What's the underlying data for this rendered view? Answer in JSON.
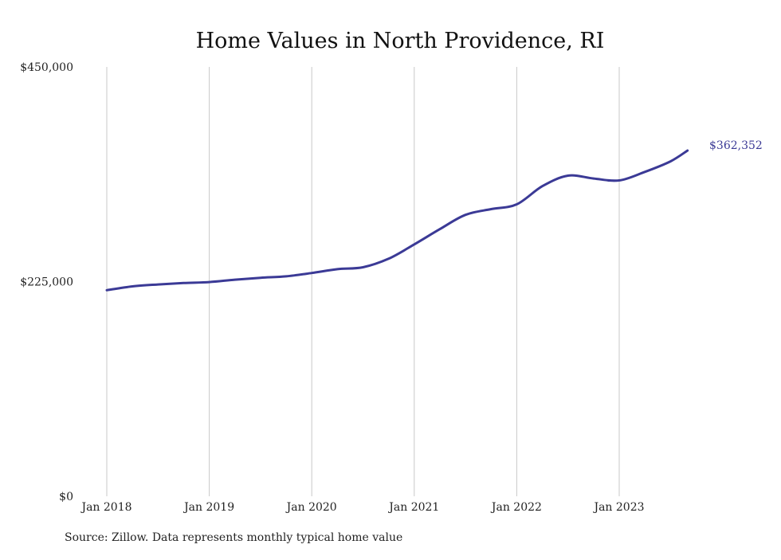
{
  "chart_data": {
    "type": "line",
    "title": "Home Values in North Providence, RI",
    "xlabel": "",
    "ylabel": "",
    "x_ticks": [
      "Jan 2018",
      "Jan 2019",
      "Jan 2020",
      "Jan 2021",
      "Jan 2022",
      "Jan 2023"
    ],
    "y_ticks": [
      "$450,000",
      "$225,000",
      "$0"
    ],
    "y_tick_values": [
      450000,
      225000,
      0
    ],
    "ylim": [
      0,
      450000
    ],
    "xlim": [
      "2018-01",
      "2023-09"
    ],
    "grid": "vertical",
    "end_label": "$362,352",
    "series": [
      {
        "color": "#3b3a96",
        "points": [
          {
            "x": "2018-01",
            "y": 216000
          },
          {
            "x": "2018-04",
            "y": 220000
          },
          {
            "x": "2018-07",
            "y": 222000
          },
          {
            "x": "2018-10",
            "y": 223500
          },
          {
            "x": "2019-01",
            "y": 224500
          },
          {
            "x": "2019-04",
            "y": 227000
          },
          {
            "x": "2019-07",
            "y": 229000
          },
          {
            "x": "2019-10",
            "y": 230500
          },
          {
            "x": "2020-01",
            "y": 234000
          },
          {
            "x": "2020-04",
            "y": 238000
          },
          {
            "x": "2020-07",
            "y": 240000
          },
          {
            "x": "2020-10",
            "y": 249000
          },
          {
            "x": "2021-01",
            "y": 264000
          },
          {
            "x": "2021-04",
            "y": 280000
          },
          {
            "x": "2021-07",
            "y": 295000
          },
          {
            "x": "2021-10",
            "y": 301000
          },
          {
            "x": "2022-01",
            "y": 306000
          },
          {
            "x": "2022-04",
            "y": 325000
          },
          {
            "x": "2022-07",
            "y": 336000
          },
          {
            "x": "2022-10",
            "y": 333000
          },
          {
            "x": "2023-01",
            "y": 331000
          },
          {
            "x": "2023-04",
            "y": 340000
          },
          {
            "x": "2023-07",
            "y": 351000
          },
          {
            "x": "2023-09",
            "y": 362352
          }
        ]
      }
    ]
  },
  "footer": {
    "source": "Source: Zillow. Data represents monthly typical home value"
  }
}
